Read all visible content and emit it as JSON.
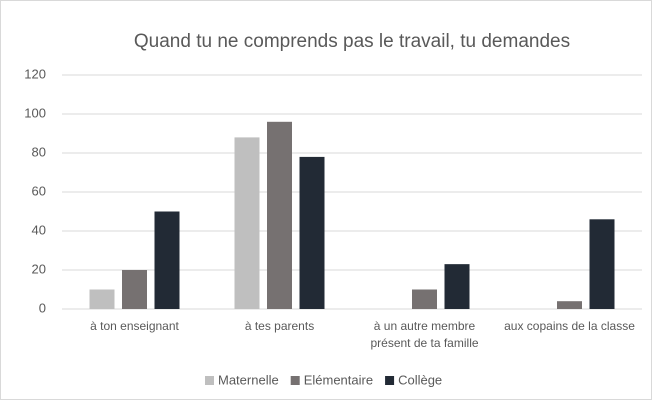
{
  "chart_data": {
    "type": "bar",
    "title": "Quand tu ne comprends pas le travail, tu demandes",
    "categories": [
      "à ton enseignant",
      "à tes parents",
      "à un autre membre\nprésent de ta famille",
      "aux copains de la classe"
    ],
    "series": [
      {
        "name": "Maternelle",
        "color": "#bfbfbf",
        "values": [
          10,
          88,
          0,
          0
        ]
      },
      {
        "name": "Elémentaire",
        "color": "#767171",
        "values": [
          20,
          96,
          10,
          4
        ]
      },
      {
        "name": "Collège",
        "color": "#222a35",
        "values": [
          50,
          78,
          23,
          46
        ]
      }
    ],
    "ylim": [
      0,
      120
    ],
    "yticks": [
      0,
      20,
      40,
      60,
      80,
      100,
      120
    ],
    "grid": true,
    "legend": "bottom"
  }
}
